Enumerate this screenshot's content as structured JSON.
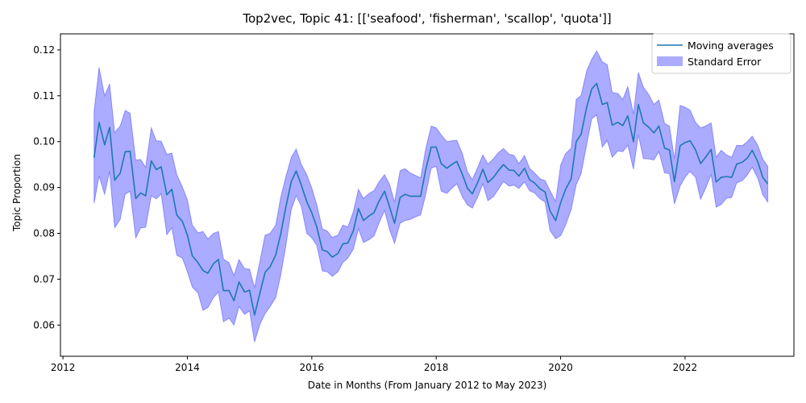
{
  "chart_data": {
    "type": "line",
    "title": "Top2vec, Topic 41: [['seafood', 'fisherman', 'scallop', 'quota']]",
    "xlabel": "Date in Months (From January 2012 to May 2023)",
    "ylabel": "Topic Proportion",
    "xlim": [
      2011.96,
      2023.75
    ],
    "ylim": [
      0.0532,
      0.1235
    ],
    "x_ticks": [
      2012,
      2014,
      2016,
      2018,
      2020,
      2022
    ],
    "y_ticks": [
      0.06,
      0.07,
      0.08,
      0.09,
      0.1,
      0.11,
      0.12
    ],
    "legend_position": "upper right",
    "grid": false,
    "series": [
      {
        "name": "Moving averages",
        "color": "#1f77b4",
        "x": [
          2012.5,
          2012.58,
          2012.67,
          2012.75,
          2012.83,
          2012.92,
          2013.0,
          2013.08,
          2013.17,
          2013.25,
          2013.33,
          2013.42,
          2013.5,
          2013.58,
          2013.67,
          2013.75,
          2013.83,
          2013.92,
          2014.0,
          2014.08,
          2014.17,
          2014.25,
          2014.33,
          2014.42,
          2014.5,
          2014.58,
          2014.67,
          2014.75,
          2014.83,
          2014.92,
          2015.0,
          2015.08,
          2015.17,
          2015.25,
          2015.33,
          2015.42,
          2015.5,
          2015.58,
          2015.67,
          2015.75,
          2015.83,
          2015.92,
          2016.0,
          2016.08,
          2016.17,
          2016.25,
          2016.33,
          2016.42,
          2016.5,
          2016.58,
          2016.67,
          2016.75,
          2016.83,
          2016.92,
          2017.0,
          2017.08,
          2017.17,
          2017.25,
          2017.33,
          2017.42,
          2017.5,
          2017.58,
          2017.67,
          2017.75,
          2017.83,
          2017.92,
          2018.0,
          2018.08,
          2018.17,
          2018.25,
          2018.33,
          2018.42,
          2018.5,
          2018.58,
          2018.67,
          2018.75,
          2018.83,
          2018.92,
          2019.0,
          2019.08,
          2019.17,
          2019.25,
          2019.33,
          2019.42,
          2019.5,
          2019.58,
          2019.67,
          2019.75,
          2019.83,
          2019.92,
          2020.0,
          2020.08,
          2020.17,
          2020.25,
          2020.33,
          2020.42,
          2020.5,
          2020.58,
          2020.67,
          2020.75,
          2020.83,
          2020.92,
          2021.0,
          2021.08,
          2021.17,
          2021.25,
          2021.33,
          2021.42,
          2021.5,
          2021.58,
          2021.67,
          2021.75,
          2021.83,
          2021.92,
          2022.0,
          2022.08,
          2022.17,
          2022.25,
          2022.33,
          2022.42,
          2022.5,
          2022.58,
          2022.67,
          2022.75,
          2022.83,
          2022.92,
          2023.0,
          2023.08,
          2023.17,
          2023.25,
          2023.33
        ],
        "values": [
          0.0965,
          0.1042,
          0.0993,
          0.1031,
          0.0916,
          0.0931,
          0.0978,
          0.0979,
          0.0876,
          0.0888,
          0.0882,
          0.0958,
          0.0939,
          0.0945,
          0.0884,
          0.0896,
          0.084,
          0.0826,
          0.0796,
          0.0751,
          0.0736,
          0.0719,
          0.0713,
          0.0734,
          0.0743,
          0.0675,
          0.0675,
          0.0653,
          0.0694,
          0.0672,
          0.0676,
          0.0622,
          0.0672,
          0.0715,
          0.0727,
          0.0753,
          0.0798,
          0.0855,
          0.0913,
          0.0936,
          0.0906,
          0.0869,
          0.0845,
          0.0814,
          0.0764,
          0.076,
          0.0748,
          0.0756,
          0.0777,
          0.0779,
          0.0806,
          0.0854,
          0.0828,
          0.0838,
          0.0845,
          0.087,
          0.0892,
          0.0858,
          0.0822,
          0.0878,
          0.0885,
          0.0881,
          0.0881,
          0.0881,
          0.0938,
          0.0988,
          0.0988,
          0.0952,
          0.0942,
          0.095,
          0.0957,
          0.0929,
          0.0899,
          0.0886,
          0.0912,
          0.094,
          0.0911,
          0.0922,
          0.0937,
          0.095,
          0.0938,
          0.0937,
          0.0925,
          0.0942,
          0.0917,
          0.091,
          0.0897,
          0.089,
          0.0849,
          0.0828,
          0.0867,
          0.0896,
          0.0919,
          0.1,
          0.1016,
          0.1076,
          0.1115,
          0.1127,
          0.1081,
          0.1085,
          0.1036,
          0.1042,
          0.1035,
          0.1056,
          0.1,
          0.1081,
          0.1041,
          0.1031,
          0.1019,
          0.1034,
          0.0986,
          0.0982,
          0.0913,
          0.0991,
          0.0998,
          0.1002,
          0.0982,
          0.0952,
          0.0966,
          0.0983,
          0.0912,
          0.0922,
          0.0924,
          0.0922,
          0.0951,
          0.0955,
          0.0964,
          0.0981,
          0.0956,
          0.0922,
          0.0908
        ]
      },
      {
        "name": "Standard Error",
        "color": "#0000ff",
        "type": "band",
        "lower": [
          0.0865,
          0.0925,
          0.0885,
          0.0935,
          0.0812,
          0.083,
          0.0885,
          0.0892,
          0.079,
          0.0812,
          0.0813,
          0.0882,
          0.0875,
          0.0886,
          0.0797,
          0.0812,
          0.0752,
          0.0746,
          0.0716,
          0.0683,
          0.067,
          0.0632,
          0.0638,
          0.066,
          0.0672,
          0.0607,
          0.0615,
          0.06,
          0.064,
          0.0623,
          0.0631,
          0.0563,
          0.0603,
          0.0625,
          0.064,
          0.066,
          0.0708,
          0.077,
          0.0852,
          0.0882,
          0.086,
          0.08,
          0.079,
          0.0774,
          0.0718,
          0.0716,
          0.0706,
          0.0716,
          0.0736,
          0.0746,
          0.0766,
          0.081,
          0.078,
          0.0786,
          0.0794,
          0.0822,
          0.085,
          0.0808,
          0.0778,
          0.0822,
          0.0828,
          0.083,
          0.0836,
          0.084,
          0.0884,
          0.0942,
          0.0946,
          0.0892,
          0.0887,
          0.0898,
          0.0908,
          0.088,
          0.0862,
          0.0855,
          0.088,
          0.0908,
          0.0871,
          0.088,
          0.0896,
          0.0913,
          0.0903,
          0.0905,
          0.0898,
          0.0912,
          0.0893,
          0.0888,
          0.0875,
          0.0868,
          0.0806,
          0.0788,
          0.0795,
          0.0818,
          0.0852,
          0.0906,
          0.093,
          0.0995,
          0.105,
          0.1058,
          0.0988,
          0.1002,
          0.0966,
          0.098,
          0.0978,
          0.0992,
          0.094,
          0.1015,
          0.0963,
          0.0962,
          0.096,
          0.0978,
          0.0932,
          0.093,
          0.0864,
          0.0903,
          0.0922,
          0.0935,
          0.0922,
          0.0874,
          0.0898,
          0.0928,
          0.0857,
          0.0863,
          0.0877,
          0.0878,
          0.091,
          0.0915,
          0.0927,
          0.0944,
          0.092,
          0.0884,
          0.0868
        ],
        "upper": [
          0.1065,
          0.1162,
          0.11,
          0.1126,
          0.102,
          0.1034,
          0.1068,
          0.1062,
          0.096,
          0.0961,
          0.0944,
          0.103,
          0.1002,
          0.1001,
          0.0972,
          0.0975,
          0.0928,
          0.0901,
          0.0873,
          0.0818,
          0.0801,
          0.0804,
          0.0788,
          0.08,
          0.0804,
          0.0744,
          0.0736,
          0.0708,
          0.0743,
          0.0723,
          0.0722,
          0.0682,
          0.0742,
          0.0796,
          0.08,
          0.0818,
          0.0878,
          0.0922,
          0.0966,
          0.0984,
          0.0951,
          0.0928,
          0.0899,
          0.0863,
          0.081,
          0.0805,
          0.0791,
          0.0796,
          0.0818,
          0.0814,
          0.0848,
          0.0896,
          0.0876,
          0.0887,
          0.0893,
          0.0912,
          0.0928,
          0.0907,
          0.0868,
          0.0937,
          0.0941,
          0.0932,
          0.0926,
          0.0921,
          0.0984,
          0.1034,
          0.103,
          0.1015,
          0.1,
          0.1002,
          0.1003,
          0.0974,
          0.0935,
          0.0917,
          0.0945,
          0.0971,
          0.0951,
          0.0963,
          0.0976,
          0.0985,
          0.0973,
          0.097,
          0.0952,
          0.097,
          0.0942,
          0.0932,
          0.0919,
          0.0915,
          0.0893,
          0.087,
          0.0949,
          0.0974,
          0.0986,
          0.1092,
          0.1101,
          0.1155,
          0.118,
          0.1198,
          0.1174,
          0.1168,
          0.1107,
          0.1105,
          0.1092,
          0.112,
          0.106,
          0.1151,
          0.1119,
          0.1102,
          0.1081,
          0.1091,
          0.104,
          0.1034,
          0.0962,
          0.1079,
          0.1075,
          0.1069,
          0.1042,
          0.103,
          0.1034,
          0.1041,
          0.0966,
          0.0981,
          0.0971,
          0.0966,
          0.0992,
          0.0991,
          0.1,
          0.1012,
          0.0992,
          0.0962,
          0.0946
        ]
      }
    ]
  }
}
